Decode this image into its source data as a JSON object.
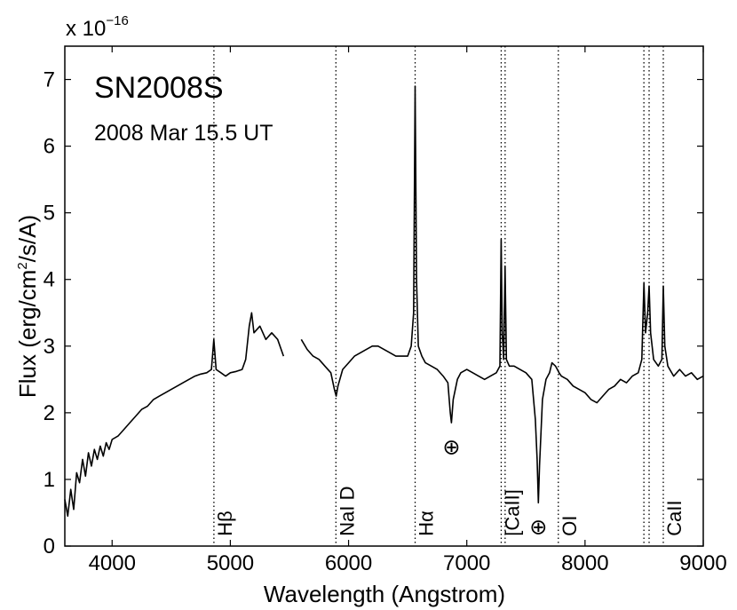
{
  "chart_data": {
    "type": "line",
    "title": "SN2008S",
    "subtitle": "2008 Mar 15.5 UT",
    "xlabel": "Wavelength  (Angstrom)",
    "ylabel_main": "Flux  (erg/cm",
    "ylabel_sup": "2",
    "ylabel_tail": "/s/A)",
    "y_scale_base": "x 10",
    "y_scale_exponent": "−16",
    "xlim": [
      3600,
      9000
    ],
    "ylim": [
      0,
      7.5
    ],
    "x_ticks": [
      4000,
      5000,
      6000,
      7000,
      8000,
      9000
    ],
    "y_ticks": [
      0,
      1,
      2,
      3,
      4,
      5,
      6,
      7
    ],
    "grid": false,
    "line_color": "#000000",
    "gap": [
      5450,
      5600
    ],
    "series": [
      {
        "points": [
          [
            3600,
            0.7
          ],
          [
            3625,
            0.45
          ],
          [
            3650,
            0.85
          ],
          [
            3675,
            0.55
          ],
          [
            3700,
            1.1
          ],
          [
            3725,
            0.95
          ],
          [
            3750,
            1.3
          ],
          [
            3775,
            1.05
          ],
          [
            3800,
            1.4
          ],
          [
            3825,
            1.2
          ],
          [
            3850,
            1.45
          ],
          [
            3875,
            1.3
          ],
          [
            3900,
            1.5
          ],
          [
            3925,
            1.35
          ],
          [
            3950,
            1.55
          ],
          [
            3975,
            1.45
          ],
          [
            4000,
            1.6
          ],
          [
            4050,
            1.65
          ],
          [
            4100,
            1.75
          ],
          [
            4150,
            1.85
          ],
          [
            4200,
            1.95
          ],
          [
            4250,
            2.05
          ],
          [
            4300,
            2.1
          ],
          [
            4350,
            2.2
          ],
          [
            4400,
            2.25
          ],
          [
            4450,
            2.3
          ],
          [
            4500,
            2.35
          ],
          [
            4550,
            2.4
          ],
          [
            4600,
            2.45
          ],
          [
            4650,
            2.5
          ],
          [
            4700,
            2.55
          ],
          [
            4750,
            2.58
          ],
          [
            4800,
            2.6
          ],
          [
            4840,
            2.65
          ],
          [
            4860,
            3.1
          ],
          [
            4880,
            2.65
          ],
          [
            4920,
            2.6
          ],
          [
            4960,
            2.55
          ],
          [
            5000,
            2.6
          ],
          [
            5050,
            2.62
          ],
          [
            5100,
            2.65
          ],
          [
            5130,
            2.8
          ],
          [
            5160,
            3.3
          ],
          [
            5180,
            3.5
          ],
          [
            5200,
            3.2
          ],
          [
            5250,
            3.3
          ],
          [
            5300,
            3.1
          ],
          [
            5350,
            3.2
          ],
          [
            5400,
            3.1
          ],
          [
            5450,
            2.85
          ],
          [
            5600,
            3.1
          ],
          [
            5650,
            2.95
          ],
          [
            5700,
            2.85
          ],
          [
            5750,
            2.8
          ],
          [
            5800,
            2.7
          ],
          [
            5850,
            2.6
          ],
          [
            5880,
            2.35
          ],
          [
            5895,
            2.25
          ],
          [
            5910,
            2.4
          ],
          [
            5950,
            2.65
          ],
          [
            6000,
            2.75
          ],
          [
            6050,
            2.85
          ],
          [
            6100,
            2.9
          ],
          [
            6150,
            2.95
          ],
          [
            6200,
            3.0
          ],
          [
            6250,
            3.0
          ],
          [
            6300,
            2.95
          ],
          [
            6350,
            2.9
          ],
          [
            6400,
            2.85
          ],
          [
            6450,
            2.85
          ],
          [
            6500,
            2.85
          ],
          [
            6530,
            3.0
          ],
          [
            6550,
            3.5
          ],
          [
            6563,
            6.9
          ],
          [
            6575,
            4.0
          ],
          [
            6590,
            3.0
          ],
          [
            6620,
            2.85
          ],
          [
            6650,
            2.75
          ],
          [
            6700,
            2.7
          ],
          [
            6750,
            2.65
          ],
          [
            6800,
            2.55
          ],
          [
            6840,
            2.45
          ],
          [
            6860,
            2.0
          ],
          [
            6870,
            1.85
          ],
          [
            6885,
            2.2
          ],
          [
            6920,
            2.5
          ],
          [
            6950,
            2.6
          ],
          [
            7000,
            2.65
          ],
          [
            7050,
            2.6
          ],
          [
            7100,
            2.55
          ],
          [
            7150,
            2.5
          ],
          [
            7200,
            2.55
          ],
          [
            7250,
            2.6
          ],
          [
            7280,
            2.7
          ],
          [
            7291,
            4.6
          ],
          [
            7300,
            3.2
          ],
          [
            7312,
            2.8
          ],
          [
            7324,
            4.2
          ],
          [
            7335,
            2.8
          ],
          [
            7360,
            2.7
          ],
          [
            7400,
            2.7
          ],
          [
            7450,
            2.65
          ],
          [
            7500,
            2.6
          ],
          [
            7550,
            2.5
          ],
          [
            7580,
            1.9
          ],
          [
            7595,
            1.3
          ],
          [
            7605,
            0.65
          ],
          [
            7615,
            1.2
          ],
          [
            7640,
            2.2
          ],
          [
            7670,
            2.5
          ],
          [
            7700,
            2.6
          ],
          [
            7720,
            2.75
          ],
          [
            7750,
            2.7
          ],
          [
            7780,
            2.6
          ],
          [
            7800,
            2.55
          ],
          [
            7850,
            2.5
          ],
          [
            7900,
            2.4
          ],
          [
            7950,
            2.35
          ],
          [
            8000,
            2.3
          ],
          [
            8050,
            2.2
          ],
          [
            8100,
            2.15
          ],
          [
            8150,
            2.25
          ],
          [
            8200,
            2.35
          ],
          [
            8250,
            2.4
          ],
          [
            8300,
            2.5
          ],
          [
            8350,
            2.45
          ],
          [
            8400,
            2.55
          ],
          [
            8450,
            2.6
          ],
          [
            8480,
            2.8
          ],
          [
            8498,
            3.95
          ],
          [
            8512,
            3.2
          ],
          [
            8530,
            3.5
          ],
          [
            8542,
            3.9
          ],
          [
            8555,
            3.2
          ],
          [
            8580,
            2.8
          ],
          [
            8620,
            2.7
          ],
          [
            8650,
            2.8
          ],
          [
            8662,
            3.9
          ],
          [
            8675,
            3.0
          ],
          [
            8700,
            2.7
          ],
          [
            8750,
            2.55
          ],
          [
            8800,
            2.65
          ],
          [
            8850,
            2.55
          ],
          [
            8900,
            2.6
          ],
          [
            8950,
            2.5
          ],
          [
            9000,
            2.55
          ]
        ]
      }
    ],
    "lines": [
      {
        "x": 4861,
        "label": "Hβ",
        "label_y": 0.15
      },
      {
        "x": 5893,
        "label": "NaI D",
        "label_y": 0.15
      },
      {
        "x": 6563,
        "label": "Hα",
        "label_y": 0.15
      },
      {
        "x": 7291,
        "label": "[CaII]",
        "label_y": 0.15
      },
      {
        "x": 7324,
        "label": null
      },
      {
        "x": 7774,
        "label": "OI",
        "label_y": 0.15
      },
      {
        "x": 8498,
        "label": null
      },
      {
        "x": 8542,
        "label": null
      },
      {
        "x": 8662,
        "label": "CaII",
        "label_y": 0.15
      }
    ],
    "telluric": [
      {
        "x": 6870,
        "y": 1.5,
        "symbol": "⊕"
      },
      {
        "x": 7605,
        "y": 0.3,
        "symbol": "⊕"
      }
    ]
  }
}
